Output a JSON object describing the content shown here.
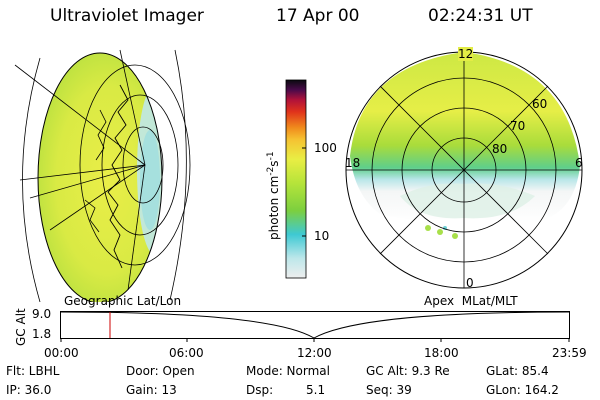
{
  "header": {
    "instrument": "Ultraviolet Imager",
    "date": "17 Apr 00",
    "time": "02:24:31 UT"
  },
  "left_panel": {
    "caption": "Geographic Lat/Lon"
  },
  "colorbar": {
    "unit_label": "photon cm",
    "unit_sup1": "-2",
    "unit_mid": "s",
    "unit_sup2": "-1",
    "ticks": [
      "100",
      "10"
    ],
    "colors": [
      "#eeeeee",
      "#bde7ea",
      "#3ec9d3",
      "#7ccf3f",
      "#b6e43a",
      "#e9ee44",
      "#f5c232",
      "#f08a1c",
      "#e0321b",
      "#b0123a",
      "#4a0a4a",
      "#0a0a10"
    ]
  },
  "right_panel": {
    "caption": "Apex  MLat/MLT",
    "mlt_labels": {
      "top": "12",
      "left": "18",
      "right": "6",
      "bottom": "0"
    },
    "mlat_labels": [
      "60",
      "70",
      "80"
    ]
  },
  "altitude_plot": {
    "ylabel": "GC Alt",
    "y_ticks": [
      "9.0",
      "1.8"
    ],
    "x_ticks": [
      "00:00",
      "06:00",
      "12:00",
      "18:00",
      "23:59"
    ]
  },
  "info": {
    "filter": "Flt: LBHL",
    "ip": "IP: 36.0",
    "door": "Door: Open",
    "gain": "Gain: 13",
    "mode": "Mode: Normal",
    "dsp_label": "Dsp:",
    "dsp_value": "5.1",
    "gc_alt": "GC Alt: 9.3 Re",
    "seq": "Seq: 39",
    "glat": "GLat: 85.4",
    "glon": "GLon: 164.2"
  }
}
